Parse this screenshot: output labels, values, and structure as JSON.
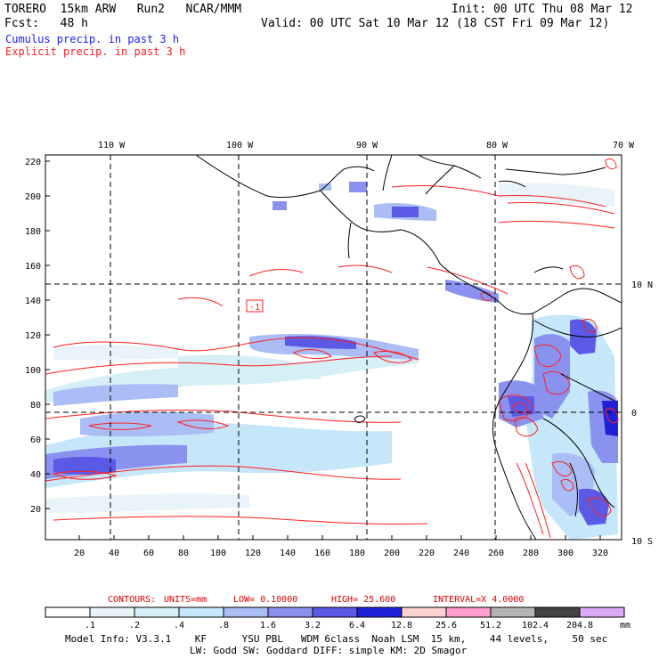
{
  "header": {
    "model": "TORERO  15km ARW   Run2   NCAR/MMM",
    "init": "Init: 00 UTC Thu 08 Mar 12",
    "fcst": "Fcst:   48 h",
    "valid": "Valid: 00 UTC Sat 10 Mar 12 (18 CST Fri 09 Mar 12)",
    "fields": [
      "Cumulus precip. in past 3 h",
      "Explicit precip. in past 3 h"
    ]
  },
  "map": {
    "top_lon_labels": [
      "110 W",
      "100 W",
      "90 W",
      "80 W",
      "70 W"
    ],
    "right_lat_labels": [
      "10 N",
      "0",
      "10 S"
    ],
    "y_ticks": [
      "220",
      "200",
      "180",
      "160",
      "140",
      "120",
      "100",
      "80",
      "60",
      "40",
      "20"
    ],
    "x_ticks": [
      "20",
      "40",
      "60",
      "80",
      "100",
      "120",
      "140",
      "160",
      "180",
      "200",
      "220",
      "240",
      "260",
      "280",
      "300",
      "320"
    ],
    "contour_label": "-1"
  },
  "contour_info": {
    "contours": "CONTOURS:",
    "units": "UNITS=mm",
    "low": "LOW=  0.10000",
    "high": "HIGH=   25.600",
    "interval": "INTERVAL=X  4.0000"
  },
  "colorbar": {
    "labels": [
      ".1",
      ".2",
      ".4",
      ".8",
      "1.6",
      "3.2",
      "6.4",
      "12.8",
      "25.6",
      "51.2",
      "102.4",
      "204.8"
    ],
    "unit": "mm",
    "colors": [
      "#ffffff",
      "#e8f4fa",
      "#d6eef6",
      "#c6e6fa",
      "#aabdf5",
      "#8a92ef",
      "#5a5ae6",
      "#2020d8",
      "#ffd2d2",
      "#ff9ed0",
      "#b4b4b4",
      "#444444",
      "#dcaaf5"
    ]
  },
  "footer": {
    "line1": "Model Info: V3.3.1    KF      YSU PBL   WDM 6class  Noah LSM  15 km,    44 levels,    50 sec",
    "line2": "LW: Godd SW: Goddard DIFF: simple KM: 2D Smagor"
  }
}
